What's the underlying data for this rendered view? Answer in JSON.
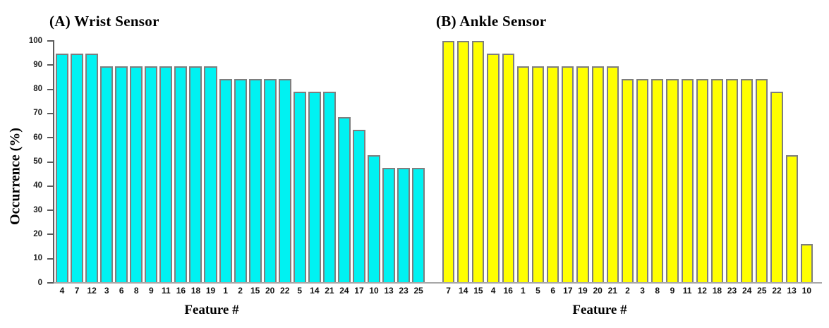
{
  "figure": {
    "background": "#ffffff",
    "ylabel": "Occurrence (%)"
  },
  "chart_data": [
    {
      "type": "bar",
      "panel": "A",
      "title": "(A) Wrist Sensor",
      "xlabel": "Feature #",
      "ylabel": "Occurrence (%)",
      "ylim": [
        0,
        100
      ],
      "yticks": [
        0,
        10,
        20,
        30,
        40,
        50,
        60,
        70,
        80,
        90,
        100
      ],
      "grid": false,
      "legend": null,
      "bar_fill": "#00f2f2",
      "bar_edge": "#7e7e7e",
      "categories": [
        "4",
        "7",
        "12",
        "3",
        "6",
        "8",
        "9",
        "11",
        "16",
        "18",
        "19",
        "1",
        "2",
        "15",
        "20",
        "22",
        "5",
        "14",
        "21",
        "24",
        "17",
        "10",
        "13",
        "23",
        "25"
      ],
      "values": [
        94.7,
        94.7,
        94.7,
        89.5,
        89.5,
        89.5,
        89.5,
        89.5,
        89.5,
        89.5,
        89.5,
        84.2,
        84.2,
        84.2,
        84.2,
        84.2,
        78.9,
        78.9,
        78.9,
        68.4,
        63.2,
        52.6,
        47.4,
        47.4,
        47.4
      ]
    },
    {
      "type": "bar",
      "panel": "B",
      "title": "(B) Ankle Sensor",
      "xlabel": "Feature #",
      "ylabel": "",
      "ylim": [
        0,
        100
      ],
      "yticks": [],
      "grid": false,
      "legend": null,
      "bar_fill": "#ffff00",
      "bar_edge": "#7e7e7e",
      "categories": [
        "7",
        "14",
        "15",
        "4",
        "16",
        "1",
        "5",
        "6",
        "17",
        "19",
        "20",
        "21",
        "2",
        "3",
        "8",
        "9",
        "11",
        "12",
        "18",
        "23",
        "24",
        "25",
        "22",
        "13",
        "10"
      ],
      "values": [
        100,
        100,
        100,
        94.7,
        94.7,
        89.5,
        89.5,
        89.5,
        89.5,
        89.5,
        89.5,
        89.5,
        84.2,
        84.2,
        84.2,
        84.2,
        84.2,
        84.2,
        84.2,
        84.2,
        84.2,
        84.2,
        78.9,
        52.6,
        15.8
      ]
    }
  ]
}
